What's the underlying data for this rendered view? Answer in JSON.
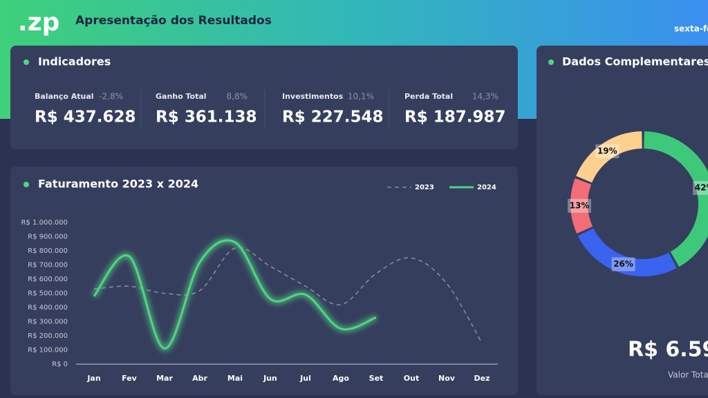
{
  "header": {
    "logo": ".zp",
    "title": "Apresentação dos Resultados",
    "date": "sexta-fe"
  },
  "indicators": {
    "title": "Indicadores",
    "items": [
      {
        "label": "Balanço Atual",
        "change": "-2,8%",
        "value": "R$ 437.628"
      },
      {
        "label": "Ganho Total",
        "change": "8,8%",
        "value": "R$ 361.138"
      },
      {
        "label": "Investimentos",
        "change": "10,1%",
        "value": "R$ 227.548"
      },
      {
        "label": "Perda Total",
        "change": "14,3%",
        "value": "R$ 187.987"
      }
    ]
  },
  "complementary": {
    "title": "Dados Complementares",
    "total": "R$ 6.59",
    "total_label": "Valor Tota"
  },
  "chart_data": [
    {
      "type": "line",
      "title": "Faturamento 2023 x 2024",
      "categories": [
        "Jan",
        "Fev",
        "Mar",
        "Abr",
        "Mai",
        "Jun",
        "Jul",
        "Ago",
        "Set",
        "Out",
        "Nov",
        "Dez"
      ],
      "series": [
        {
          "name": "2023",
          "color": "#8a8fa3",
          "dashed": true,
          "values": [
            530000,
            550000,
            500000,
            520000,
            820000,
            690000,
            550000,
            420000,
            640000,
            750000,
            570000,
            150000
          ]
        },
        {
          "name": "2024",
          "color": "#4fd682",
          "glow": true,
          "values": [
            480000,
            760000,
            110000,
            720000,
            860000,
            460000,
            490000,
            250000,
            330000,
            null,
            null,
            null
          ]
        }
      ],
      "ylim": [
        0,
        1000000
      ],
      "yticks": [
        {
          "value": 0,
          "label": "R$ 0"
        },
        {
          "value": 100000,
          "label": "R$ 100.000"
        },
        {
          "value": 200000,
          "label": "R$ 200.000"
        },
        {
          "value": 300000,
          "label": "R$ 300.000"
        },
        {
          "value": 400000,
          "label": "R$ 400.000"
        },
        {
          "value": 500000,
          "label": "R$ 500.000"
        },
        {
          "value": 600000,
          "label": "R$ 600.000"
        },
        {
          "value": 700000,
          "label": "R$ 700.000"
        },
        {
          "value": 800000,
          "label": "R$ 800.000"
        },
        {
          "value": 900000,
          "label": "R$ 900.000"
        },
        {
          "value": 1000000,
          "label": "R$ 1.000.000"
        }
      ],
      "legend": "top-right"
    },
    {
      "type": "pie",
      "donut": true,
      "values": [
        42,
        26,
        13,
        19
      ],
      "value_labels": [
        "42%",
        "26%",
        "13%",
        "19%"
      ],
      "colors": [
        "#3ec97a",
        "#3a63f0",
        "#f26d78",
        "#fdd08e"
      ]
    }
  ]
}
